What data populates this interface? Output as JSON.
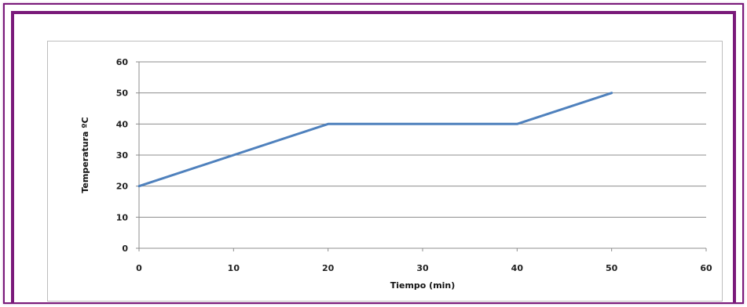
{
  "chart_data": {
    "type": "line",
    "title": "",
    "xlabel": "Tiempo (min)",
    "ylabel": "Temperatura ºC",
    "xlim": [
      0,
      60
    ],
    "ylim": [
      0,
      60
    ],
    "xticks": [
      0,
      10,
      20,
      30,
      40,
      50,
      60
    ],
    "yticks": [
      0,
      10,
      20,
      30,
      40,
      50,
      60
    ],
    "grid": "horizontal",
    "legend": "none",
    "series": [
      {
        "color": "#4f81bd",
        "points": [
          {
            "x": 0,
            "y": 20
          },
          {
            "x": 20,
            "y": 40
          },
          {
            "x": 40,
            "y": 40
          },
          {
            "x": 50,
            "y": 50
          }
        ]
      }
    ]
  }
}
